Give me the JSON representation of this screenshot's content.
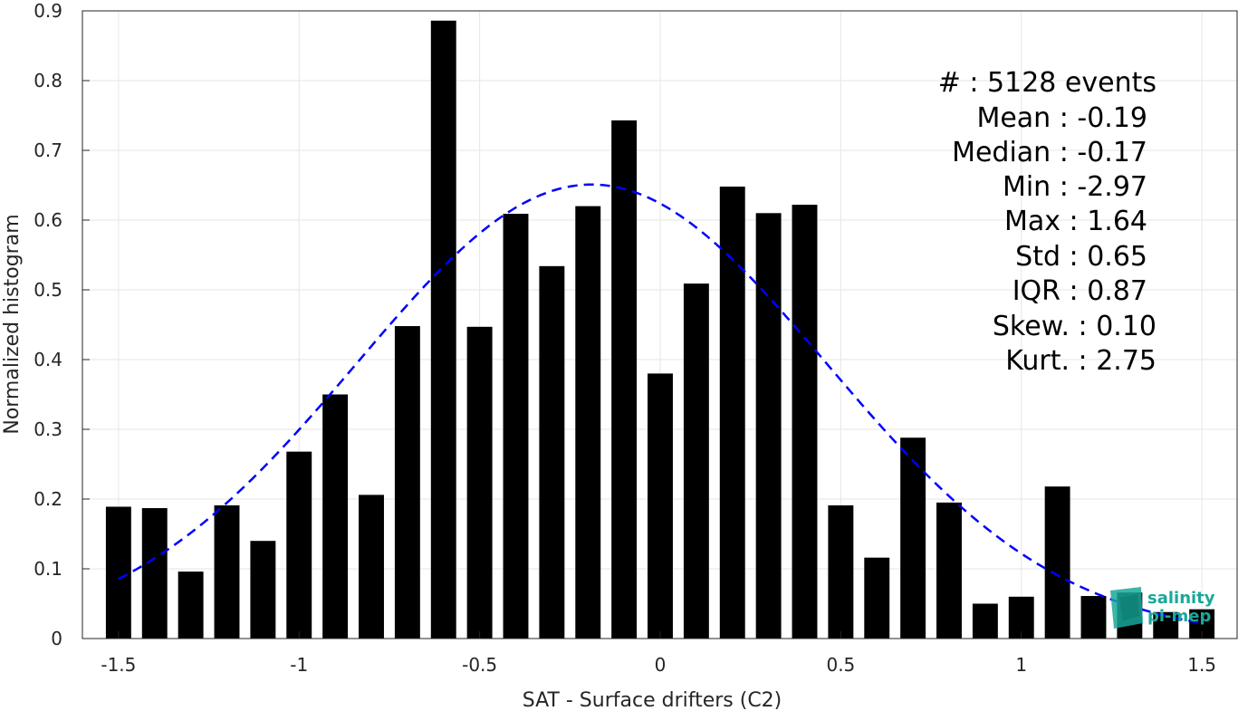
{
  "chart_data": {
    "type": "bar",
    "xlabel": "SAT - Surface drifters (C2)",
    "ylabel": "Normalized histogram",
    "xlim": [
      -1.6,
      1.6
    ],
    "ylim": [
      0,
      0.9
    ],
    "xticks": [
      -1.5,
      -1,
      -0.5,
      0,
      0.5,
      1,
      1.5
    ],
    "xtick_labels": [
      "-1.5",
      "-1",
      "-0.5",
      "0",
      "0.5",
      "1",
      "1.5"
    ],
    "yticks": [
      0,
      0.1,
      0.2,
      0.3,
      0.4,
      0.5,
      0.6,
      0.7,
      0.8,
      0.9
    ],
    "ytick_labels": [
      "0",
      "0.1",
      "0.2",
      "0.3",
      "0.4",
      "0.5",
      "0.6",
      "0.7",
      "0.8",
      "0.9"
    ],
    "grid": true,
    "bar_width": 0.07,
    "bar_color": "#000000",
    "bins": [
      {
        "x": -1.5,
        "y": 0.189
      },
      {
        "x": -1.4,
        "y": 0.187
      },
      {
        "x": -1.3,
        "y": 0.096
      },
      {
        "x": -1.2,
        "y": 0.191
      },
      {
        "x": -1.1,
        "y": 0.14
      },
      {
        "x": -1.0,
        "y": 0.268
      },
      {
        "x": -0.9,
        "y": 0.35
      },
      {
        "x": -0.8,
        "y": 0.206
      },
      {
        "x": -0.7,
        "y": 0.448
      },
      {
        "x": -0.6,
        "y": 0.886
      },
      {
        "x": -0.5,
        "y": 0.447
      },
      {
        "x": -0.4,
        "y": 0.609
      },
      {
        "x": -0.3,
        "y": 0.534
      },
      {
        "x": -0.2,
        "y": 0.62
      },
      {
        "x": -0.1,
        "y": 0.743
      },
      {
        "x": 0.0,
        "y": 0.38
      },
      {
        "x": 0.1,
        "y": 0.509
      },
      {
        "x": 0.2,
        "y": 0.648
      },
      {
        "x": 0.3,
        "y": 0.61
      },
      {
        "x": 0.4,
        "y": 0.622
      },
      {
        "x": 0.5,
        "y": 0.191
      },
      {
        "x": 0.6,
        "y": 0.116
      },
      {
        "x": 0.7,
        "y": 0.288
      },
      {
        "x": 0.8,
        "y": 0.195
      },
      {
        "x": 0.9,
        "y": 0.05
      },
      {
        "x": 1.0,
        "y": 0.06
      },
      {
        "x": 1.1,
        "y": 0.218
      },
      {
        "x": 1.2,
        "y": 0.061
      },
      {
        "x": 1.3,
        "y": 0.066
      },
      {
        "x": 1.4,
        "y": 0.038
      },
      {
        "x": 1.5,
        "y": 0.042
      }
    ],
    "fit_curve": {
      "type": "gaussian",
      "mean": -0.19,
      "std": 0.65,
      "peak": 0.651,
      "x_range": [
        -1.5,
        1.5
      ],
      "color": "#0000ff",
      "style": "dashed"
    },
    "annotation_lines": [
      "#  : 5128 events",
      "Mean : -0.19",
      "Median : -0.17",
      "Min : -2.97",
      "Max : 1.64",
      "Std : 0.65",
      "IQR : 0.87",
      "Skew. : 0.10",
      "Kurt. : 2.75"
    ],
    "annotation_placement": "top-right"
  },
  "logo": {
    "line1": "salinity",
    "line2": "pi-mep",
    "color": "#1aa89a"
  }
}
